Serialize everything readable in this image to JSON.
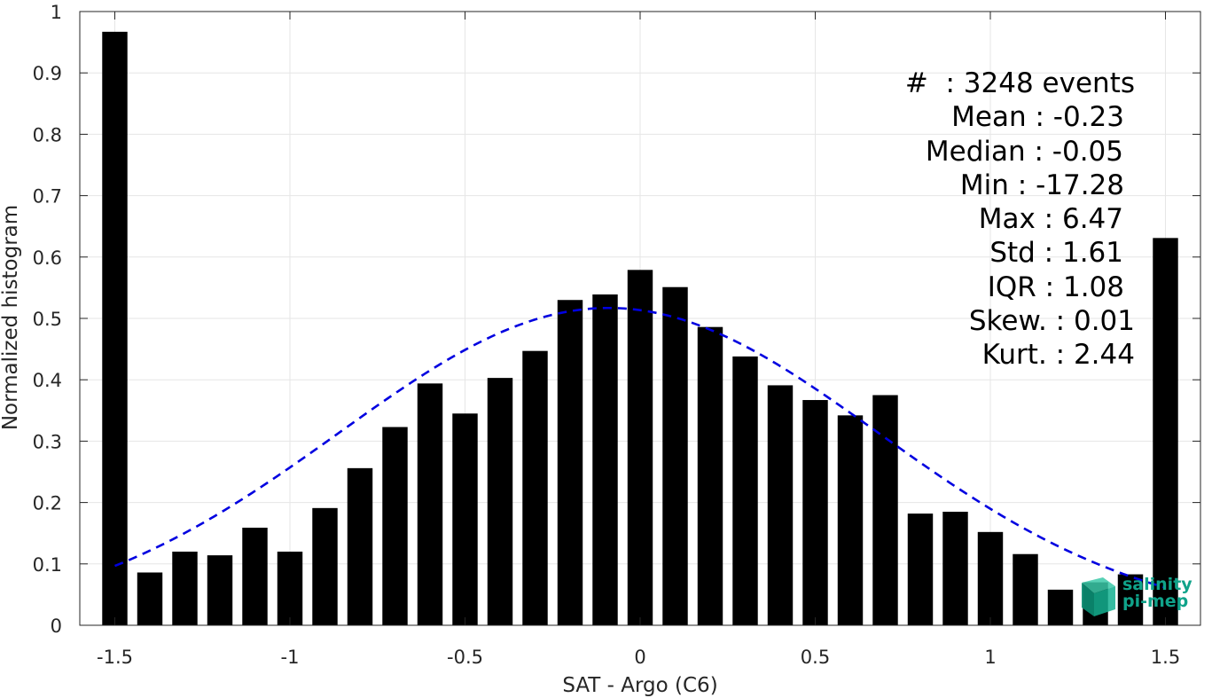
{
  "chart_data": {
    "type": "bar",
    "xlabel": "SAT - Argo (C6)",
    "ylabel": "Normalized histogram",
    "xlim": [
      -1.6,
      1.6
    ],
    "ylim": [
      0,
      1
    ],
    "grid": true,
    "xticks": [
      -1.5,
      -1,
      -0.5,
      0,
      0.5,
      1,
      1.5
    ],
    "xtick_labels": [
      "-1.5",
      "-1",
      "-0.5",
      "0",
      "0.5",
      "1",
      "1.5"
    ],
    "yticks": [
      0,
      0.1,
      0.2,
      0.3,
      0.4,
      0.5,
      0.6,
      0.7,
      0.8,
      0.9,
      1
    ],
    "ytick_labels": [
      "0",
      "0.1",
      "0.2",
      "0.3",
      "0.4",
      "0.5",
      "0.6",
      "0.7",
      "0.8",
      "0.9",
      "1"
    ],
    "bar_color": "#000000",
    "x": [
      -1.5,
      -1.4,
      -1.3,
      -1.2,
      -1.1,
      -1.0,
      -0.9,
      -0.8,
      -0.7,
      -0.6,
      -0.5,
      -0.4,
      -0.3,
      -0.2,
      -0.1,
      0.0,
      0.1,
      0.2,
      0.3,
      0.4,
      0.5,
      0.6,
      0.7,
      0.8,
      0.9,
      1.0,
      1.1,
      1.2,
      1.3,
      1.4,
      1.5
    ],
    "values": [
      0.967,
      0.086,
      0.12,
      0.114,
      0.159,
      0.12,
      0.191,
      0.256,
      0.323,
      0.394,
      0.345,
      0.403,
      0.447,
      0.53,
      0.539,
      0.579,
      0.551,
      0.486,
      0.438,
      0.391,
      0.367,
      0.342,
      0.375,
      0.182,
      0.185,
      0.152,
      0.116,
      0.058,
      0.07,
      0.083,
      0.631
    ],
    "fit_curve": {
      "style": "dashed",
      "color": "#0000e0",
      "mean": -0.09,
      "sigma": 0.77,
      "peak": 0.517,
      "x_range": [
        -1.5,
        1.5
      ]
    },
    "annotations": [
      "#  : 3248 events",
      "Mean : -0.23",
      "Median : -0.05",
      "Min : -17.28",
      "Max : 6.47",
      "Std : 1.61",
      "IQR : 1.08",
      "Skew. : 0.01",
      "Kurt. : 2.44"
    ]
  },
  "logo": {
    "line1": "salinity",
    "line2": "pi-mep",
    "color": "#10a38a"
  }
}
